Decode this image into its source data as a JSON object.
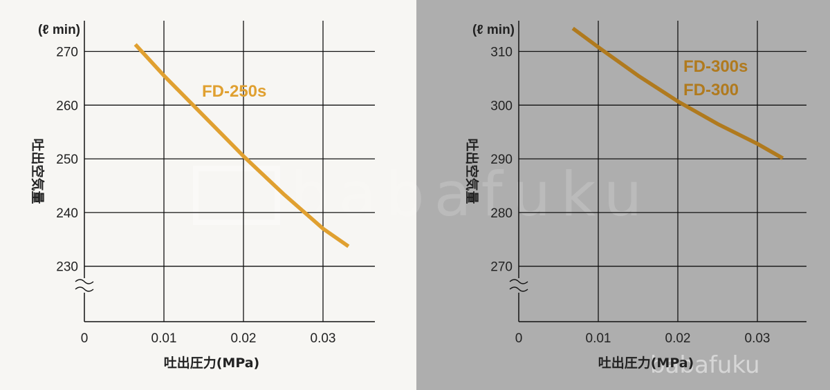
{
  "watermark": {
    "text": "babafuku"
  },
  "chart_data": [
    {
      "type": "line",
      "unit_label": "(ℓ min)",
      "ylabel": "吐出空気量",
      "xlabel": "吐出圧力(MPa)",
      "xlim": [
        0,
        0.035
      ],
      "ylim": [
        220,
        275
      ],
      "x_ticks": [
        0,
        0.01,
        0.02,
        0.03
      ],
      "x_tick_labels": [
        "0",
        "0.01",
        "0.02",
        "0.03"
      ],
      "y_ticks": [
        230,
        240,
        250,
        260,
        270
      ],
      "y_tick_labels": [
        "230",
        "240",
        "250",
        "260",
        "270"
      ],
      "axis_break": true,
      "grid": true,
      "series": [
        {
          "name": "FD-250s",
          "color": "#e0a030",
          "x": [
            0.0064,
            0.01,
            0.015,
            0.02,
            0.025,
            0.03,
            0.0332
          ],
          "y": [
            271.3,
            265.5,
            258.0,
            250.5,
            243.5,
            237.0,
            233.7
          ]
        }
      ]
    },
    {
      "type": "line",
      "unit_label": "(ℓ min)",
      "ylabel": "吐出空気量",
      "xlabel": "吐出圧力(MPa)",
      "xlim": [
        0,
        0.035
      ],
      "ylim": [
        260,
        315
      ],
      "x_ticks": [
        0,
        0.01,
        0.02,
        0.03
      ],
      "x_tick_labels": [
        "0",
        "0.01",
        "0.02",
        "0.03"
      ],
      "y_ticks": [
        270,
        280,
        290,
        300,
        310
      ],
      "y_tick_labels": [
        "270",
        "280",
        "290",
        "300",
        "310"
      ],
      "axis_break": true,
      "grid": true,
      "series": [
        {
          "name": "FD-300s\nFD-300",
          "legend_lines": [
            "FD-300s",
            "FD-300"
          ],
          "color": "#b07a1e",
          "x": [
            0.0068,
            0.01,
            0.015,
            0.02,
            0.025,
            0.03,
            0.0332
          ],
          "y": [
            314.3,
            310.8,
            305.5,
            300.7,
            296.5,
            292.8,
            290.1
          ]
        }
      ]
    }
  ]
}
